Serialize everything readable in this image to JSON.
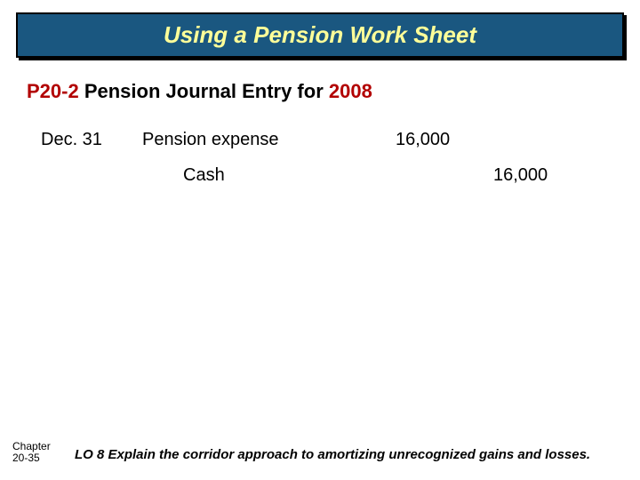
{
  "colors": {
    "title_bg": "#1a5780",
    "title_fg": "#ffff99",
    "accent_red": "#b20000",
    "background": "#ffffff",
    "border": "#000000"
  },
  "title": "Using a Pension Work Sheet",
  "subhead": {
    "problem_id": "P20-2",
    "description": " Pension Journal Entry for ",
    "year": "2008"
  },
  "journal_entry": {
    "date": "Dec. 31",
    "lines": [
      {
        "account": "Pension expense",
        "debit": "16,000",
        "credit": ""
      },
      {
        "account": "Cash",
        "debit": "",
        "credit": "16,000"
      }
    ]
  },
  "footer": {
    "chapter_label_line1": "Chapter",
    "chapter_label_line2": "20-35",
    "learning_objective": "LO 8 Explain the corridor approach to amortizing unrecognized gains and losses."
  },
  "typography": {
    "title_fontsize": 26,
    "subhead_fontsize": 22,
    "body_fontsize": 20,
    "footer_fontsize": 15,
    "chapter_fontsize": 12,
    "font_family": "Comic Sans MS"
  }
}
